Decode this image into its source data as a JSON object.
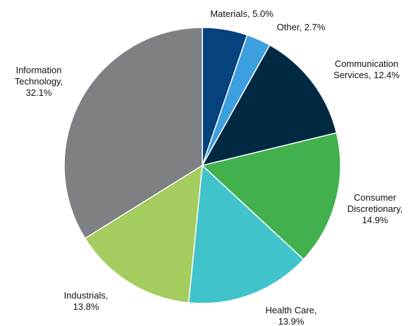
{
  "chart_data": {
    "type": "pie",
    "title": "",
    "slices": [
      {
        "label": "Materials",
        "value": 5.0,
        "display": "Materials, 5.0%",
        "color": "#06427e"
      },
      {
        "label": "Other",
        "value": 2.7,
        "display": "Other, 2.7%",
        "color": "#3c9fdf"
      },
      {
        "label": "Communication Services",
        "value": 12.4,
        "display": [
          "Communication",
          "Services, 12.4%"
        ],
        "color": "#022942"
      },
      {
        "label": "Consumer Discretionary",
        "value": 14.9,
        "display": [
          "Consumer",
          "Discretionary,",
          "14.9%"
        ],
        "color": "#41b04d"
      },
      {
        "label": "Health Care",
        "value": 13.9,
        "display": [
          "Health Care,",
          "13.9%"
        ],
        "color": "#41c3cc"
      },
      {
        "label": "Industrials",
        "value": 13.8,
        "display": [
          "Industrials,",
          "13.8%"
        ],
        "color": "#a4cc5f"
      },
      {
        "label": "Information Technology",
        "value": 32.1,
        "display": [
          "Information",
          "Technology,",
          "32.1%"
        ],
        "color": "#7f8083"
      }
    ],
    "start_angle": "12 o'clock",
    "direction": "clockwise",
    "legend": "none"
  }
}
